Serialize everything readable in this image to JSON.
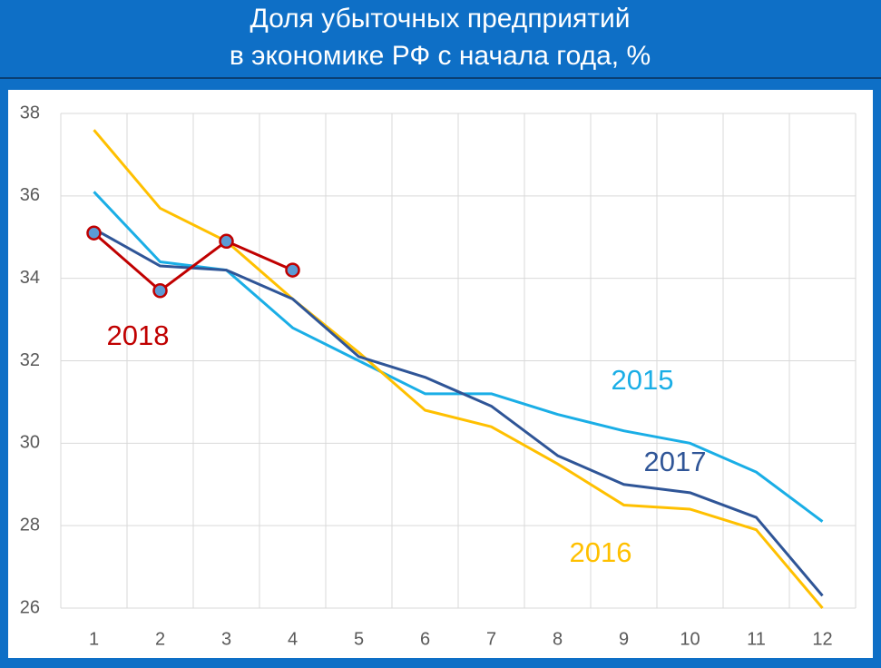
{
  "chart_data": {
    "type": "line",
    "title": [
      "Доля убыточных предприятий",
      "в экономике РФ с начала года, %"
    ],
    "categories": [
      "1",
      "2",
      "3",
      "4",
      "5",
      "6",
      "7",
      "8",
      "9",
      "10",
      "11",
      "12"
    ],
    "series": [
      {
        "name": "2015",
        "color": "#1aaee6",
        "values": [
          36.1,
          34.4,
          34.2,
          32.8,
          32.0,
          31.2,
          31.2,
          30.7,
          30.3,
          30.0,
          29.3,
          28.1
        ]
      },
      {
        "name": "2016",
        "color": "#ffc000",
        "values": [
          37.6,
          35.7,
          34.9,
          33.5,
          32.2,
          30.8,
          30.4,
          29.5,
          28.5,
          28.4,
          27.9,
          26.0
        ]
      },
      {
        "name": "2017",
        "color": "#2f5597",
        "values": [
          35.2,
          34.3,
          34.2,
          33.5,
          32.1,
          31.6,
          30.9,
          29.7,
          29.0,
          28.8,
          28.2,
          26.3
        ]
      },
      {
        "name": "2018",
        "color": "#c00000",
        "marker_fill": "#5b9bd5",
        "values": [
          35.1,
          33.7,
          34.9,
          34.2,
          null,
          null,
          null,
          null,
          null,
          null,
          null,
          null
        ]
      }
    ],
    "ylim": [
      26,
      38
    ],
    "yticks": [
      26,
      28,
      30,
      32,
      34,
      36,
      38
    ],
    "grid": true
  }
}
